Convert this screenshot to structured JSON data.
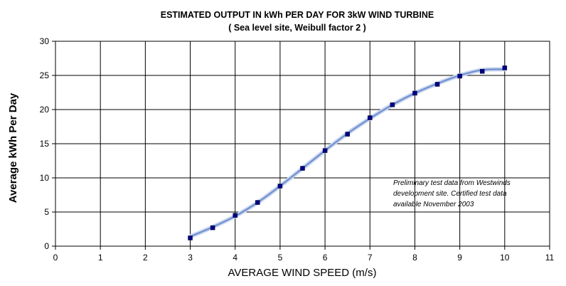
{
  "chart_data": {
    "type": "scatter",
    "title": "ESTIMATED OUTPUT IN kWh PER DAY FOR 3kW WIND TURBINE",
    "subtitle": "( Sea level site,  Weibull factor 2 )",
    "xlabel": "AVERAGE WIND SPEED (m/s)",
    "ylabel": "Average kWh  Per Day",
    "xlim": [
      0,
      11
    ],
    "ylim": [
      0,
      30
    ],
    "x_ticks": [
      "0",
      "1",
      "2",
      "3",
      "4",
      "5",
      "6",
      "7",
      "8",
      "9",
      "10",
      "11"
    ],
    "y_ticks": [
      "0",
      "5",
      "10",
      "15",
      "20",
      "25",
      "30"
    ],
    "grid": true,
    "marker_color": "#000080",
    "trendline_color": "#6f8fcf",
    "points": [
      {
        "x": 3,
        "y": 1.2
      },
      {
        "x": 3.5,
        "y": 2.7
      },
      {
        "x": 4,
        "y": 4.5
      },
      {
        "x": 4.5,
        "y": 6.4
      },
      {
        "x": 5,
        "y": 8.8
      },
      {
        "x": 5.5,
        "y": 11.4
      },
      {
        "x": 6,
        "y": 14.0
      },
      {
        "x": 6.5,
        "y": 16.4
      },
      {
        "x": 7,
        "y": 18.8
      },
      {
        "x": 7.5,
        "y": 20.7
      },
      {
        "x": 8,
        "y": 22.4
      },
      {
        "x": 8.5,
        "y": 23.7
      },
      {
        "x": 9,
        "y": 24.9
      },
      {
        "x": 9.5,
        "y": 25.6
      },
      {
        "x": 10,
        "y": 26.1
      }
    ],
    "trendline": [
      {
        "x": 3,
        "y": 1.4
      },
      {
        "x": 3.5,
        "y": 2.8
      },
      {
        "x": 4,
        "y": 4.4
      },
      {
        "x": 4.5,
        "y": 6.4
      },
      {
        "x": 5,
        "y": 8.8
      },
      {
        "x": 5.5,
        "y": 11.4
      },
      {
        "x": 6,
        "y": 14.0
      },
      {
        "x": 6.5,
        "y": 16.5
      },
      {
        "x": 7,
        "y": 18.7
      },
      {
        "x": 7.5,
        "y": 20.7
      },
      {
        "x": 8,
        "y": 22.4
      },
      {
        "x": 8.5,
        "y": 23.8
      },
      {
        "x": 9,
        "y": 25.0
      },
      {
        "x": 9.5,
        "y": 25.8
      },
      {
        "x": 10,
        "y": 25.9
      }
    ],
    "annotation": [
      "Preliminary test data from Westwinds",
      "development site. Certified test data",
      "available November 2003"
    ]
  }
}
